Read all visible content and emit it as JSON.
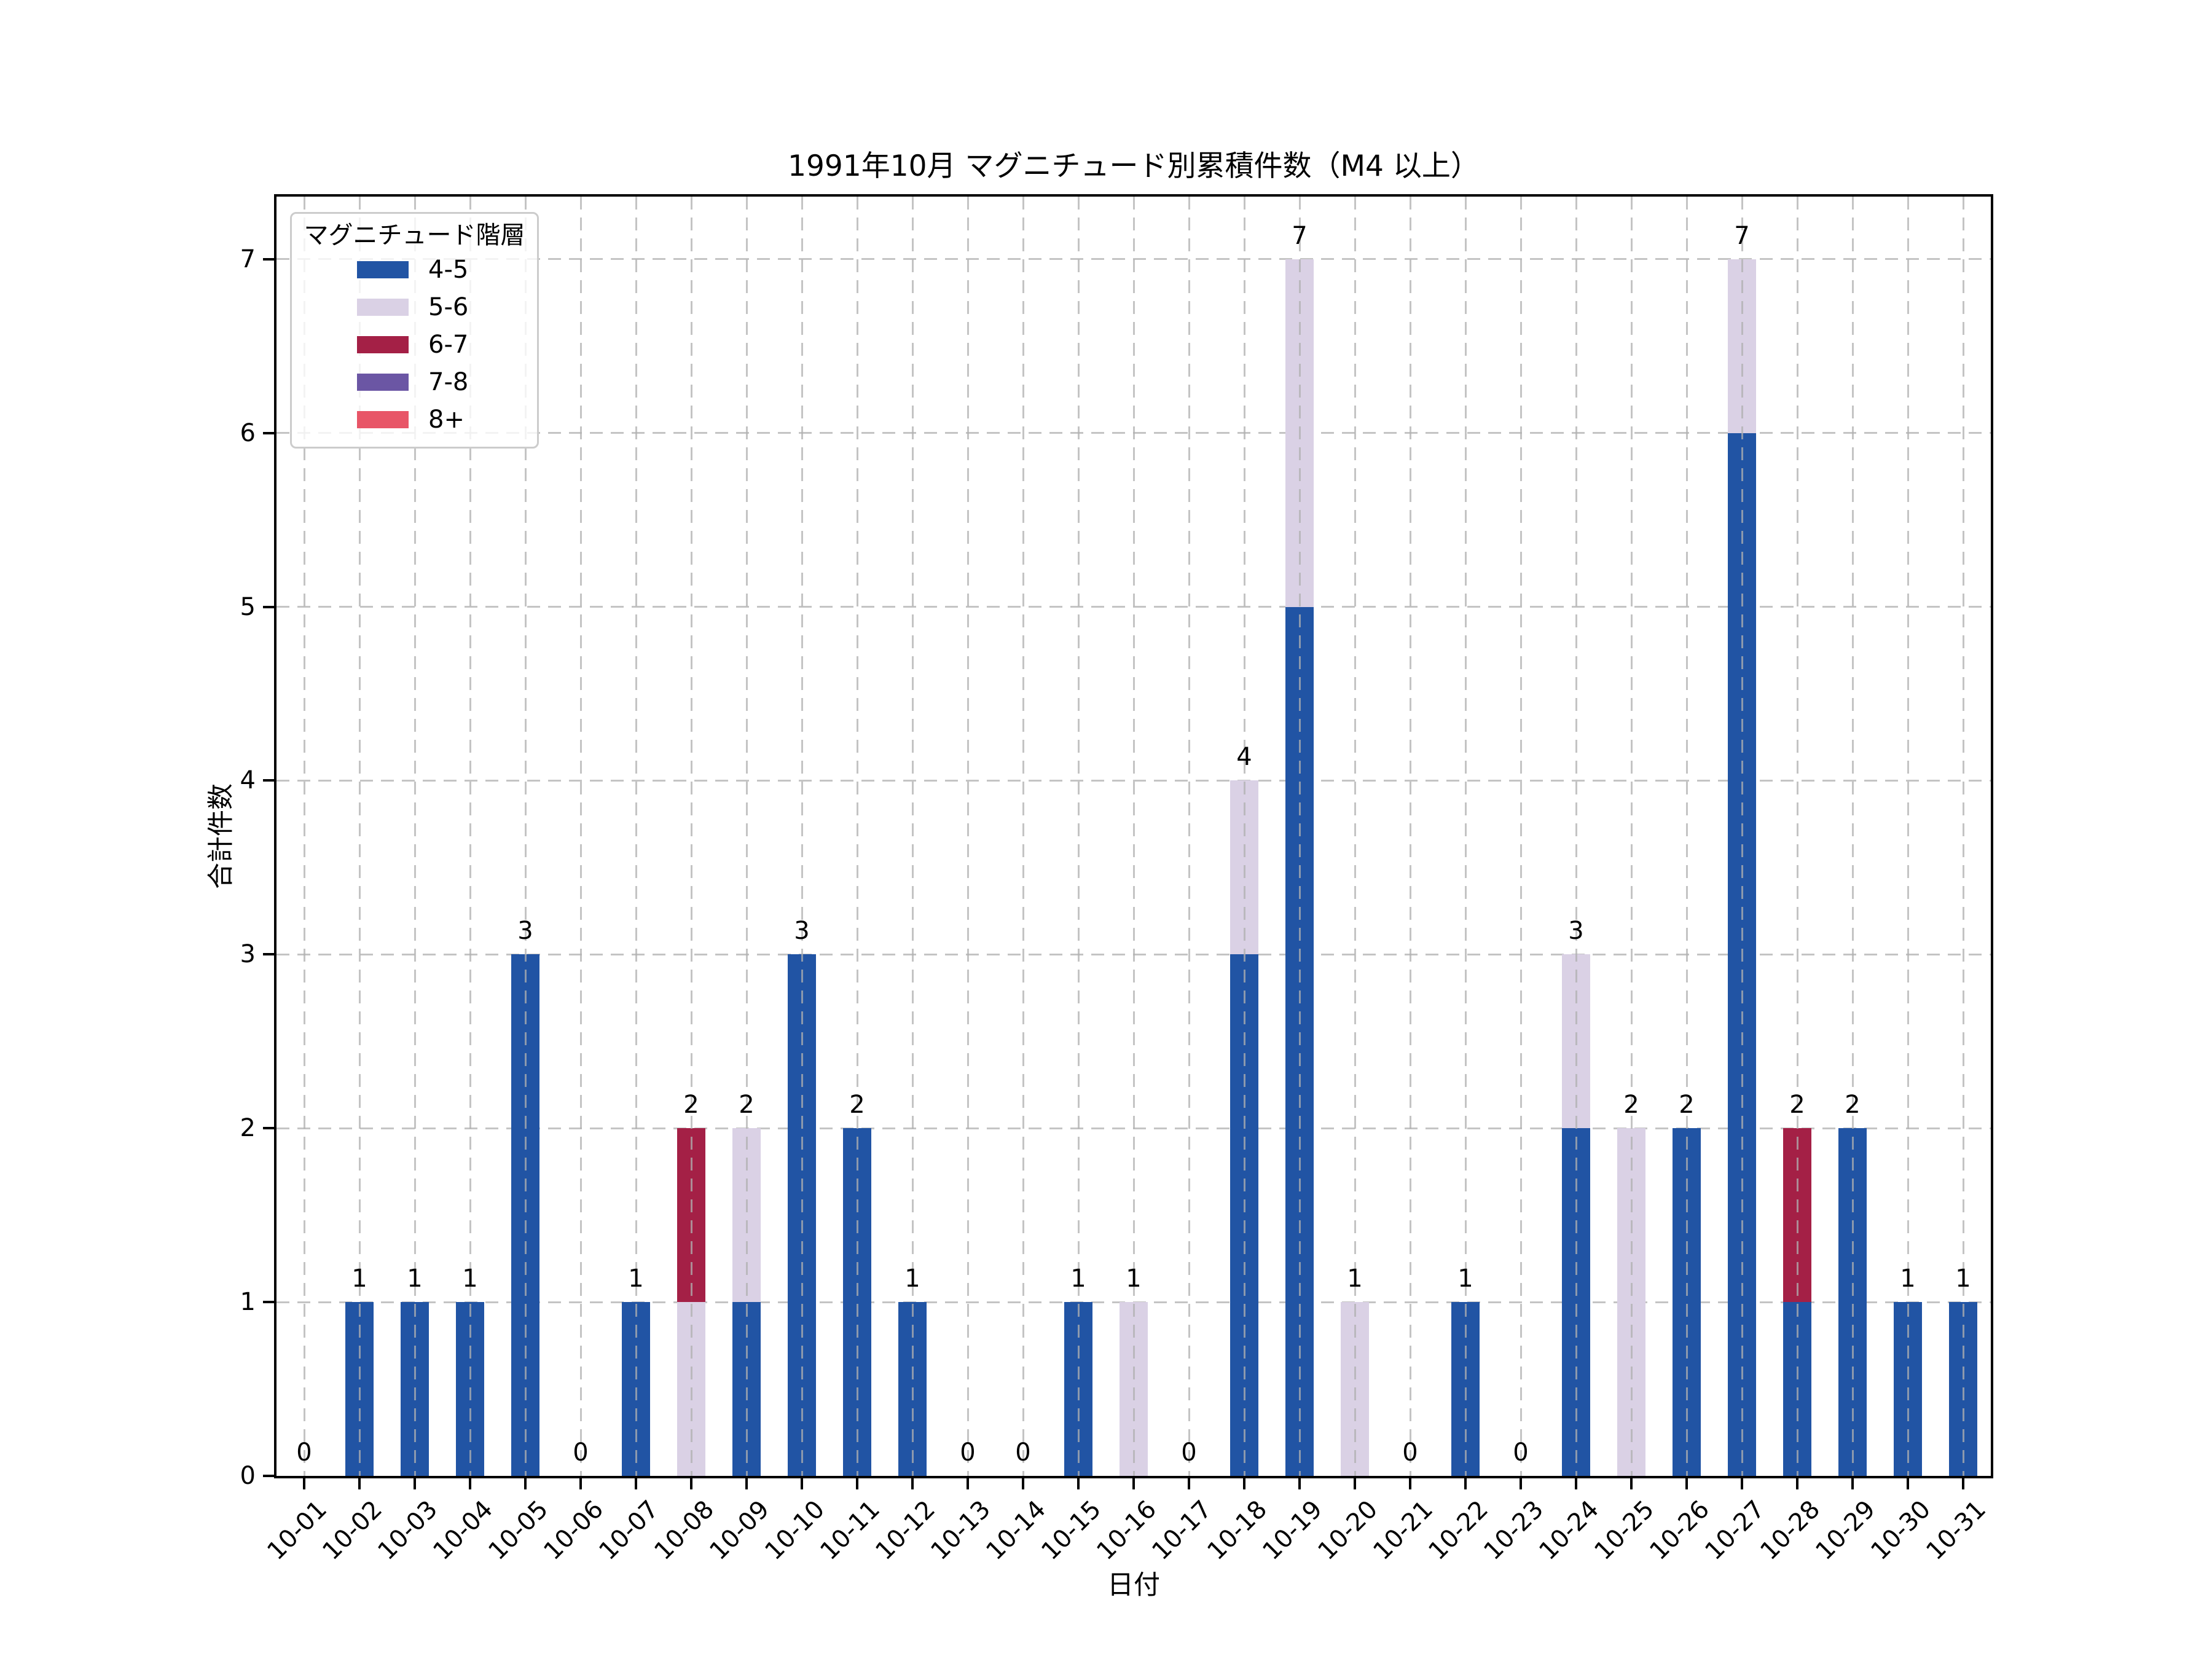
{
  "title": "1991年10月 マグニチュード別累積件数（M4 以上）",
  "legend": {
    "title": "マグニチュード階層",
    "position": "upper left"
  },
  "axes": {
    "xlabel": "日付",
    "ylabel": "合計件数",
    "yticks": [
      0,
      1,
      2,
      3,
      4,
      5,
      6,
      7
    ]
  },
  "colors": {
    "background": "#ffffff",
    "axis": "#000000",
    "grid": "#b0b0b0",
    "legend_border": "#cccccc",
    "bar_4_5": "#2154a4",
    "bar_5_6": "#dad1e5",
    "bar_6_7": "#a42046",
    "bar_7_8": "#6b56a4",
    "bar_8_plus": "#e85567"
  },
  "chart_data": {
    "type": "bar",
    "stacked": true,
    "grid": true,
    "legend_position": "upper left",
    "title": "1991年10月 マグニチュード別累積件数（M4 以上）",
    "xlabel": "日付",
    "ylabel": "合計件数",
    "ylim": [
      0,
      7.36
    ],
    "yticks": [
      0,
      1,
      2,
      3,
      4,
      5,
      6,
      7
    ],
    "categories": [
      "10-01",
      "10-02",
      "10-03",
      "10-04",
      "10-05",
      "10-06",
      "10-07",
      "10-08",
      "10-09",
      "10-10",
      "10-11",
      "10-12",
      "10-13",
      "10-14",
      "10-15",
      "10-16",
      "10-17",
      "10-18",
      "10-19",
      "10-20",
      "10-21",
      "10-22",
      "10-23",
      "10-24",
      "10-25",
      "10-26",
      "10-27",
      "10-28",
      "10-29",
      "10-30",
      "10-31"
    ],
    "series": [
      {
        "name": "4-5",
        "color": "#2154a4",
        "values": [
          0,
          1,
          1,
          1,
          3,
          0,
          1,
          0,
          1,
          3,
          2,
          1,
          0,
          0,
          1,
          0,
          0,
          3,
          5,
          0,
          0,
          1,
          0,
          2,
          0,
          2,
          6,
          1,
          2,
          1,
          1
        ]
      },
      {
        "name": "5-6",
        "color": "#dad1e5",
        "values": [
          0,
          0,
          0,
          0,
          0,
          0,
          0,
          1,
          1,
          0,
          0,
          0,
          0,
          0,
          0,
          1,
          0,
          1,
          2,
          1,
          0,
          0,
          0,
          1,
          2,
          0,
          1,
          0,
          0,
          0,
          0
        ]
      },
      {
        "name": "6-7",
        "color": "#a42046",
        "values": [
          0,
          0,
          0,
          0,
          0,
          0,
          0,
          1,
          0,
          0,
          0,
          0,
          0,
          0,
          0,
          0,
          0,
          0,
          0,
          0,
          0,
          0,
          0,
          0,
          0,
          0,
          0,
          1,
          0,
          0,
          0
        ]
      },
      {
        "name": "7-8",
        "color": "#6b56a4",
        "values": [
          0,
          0,
          0,
          0,
          0,
          0,
          0,
          0,
          0,
          0,
          0,
          0,
          0,
          0,
          0,
          0,
          0,
          0,
          0,
          0,
          0,
          0,
          0,
          0,
          0,
          0,
          0,
          0,
          0,
          0,
          0
        ]
      },
      {
        "name": "8+",
        "color": "#e85567",
        "values": [
          0,
          0,
          0,
          0,
          0,
          0,
          0,
          0,
          0,
          0,
          0,
          0,
          0,
          0,
          0,
          0,
          0,
          0,
          0,
          0,
          0,
          0,
          0,
          0,
          0,
          0,
          0,
          0,
          0,
          0,
          0
        ]
      }
    ],
    "totals": [
      0,
      1,
      1,
      1,
      3,
      0,
      1,
      2,
      2,
      3,
      2,
      1,
      0,
      0,
      1,
      1,
      0,
      4,
      7,
      1,
      0,
      1,
      0,
      3,
      2,
      2,
      7,
      2,
      2,
      1,
      1
    ]
  }
}
